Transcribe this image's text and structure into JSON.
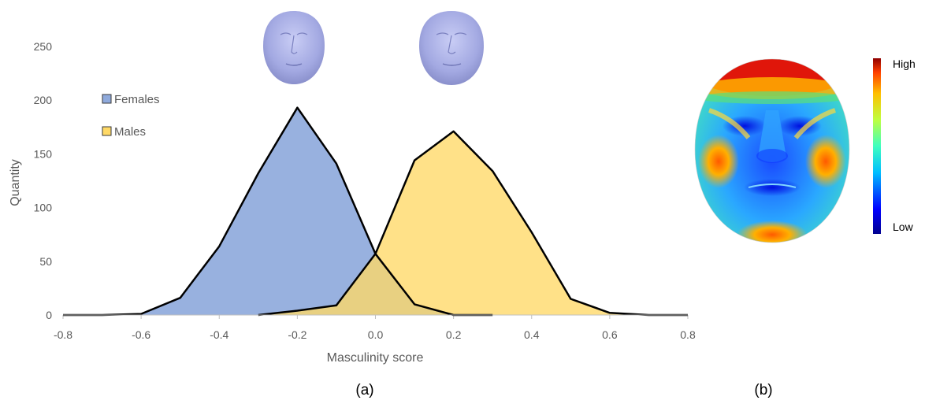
{
  "colors": {
    "females": "#8faadc",
    "males": "#ffd966",
    "overlap": "#c9b57a",
    "outline": "#000000",
    "axis": "#bfbfbf",
    "face_gray": "#aab0e8"
  },
  "chart_data": {
    "type": "area",
    "xlabel": "Masculinity score",
    "ylabel": "Quantity",
    "xlim": [
      -0.8,
      0.8
    ],
    "ylim": [
      0,
      250
    ],
    "xticks": [
      "-0.8",
      "-0.6",
      "-0.4",
      "-0.2",
      "0.0",
      "0.2",
      "0.4",
      "0.6",
      "0.8"
    ],
    "yticks": [
      "0",
      "50",
      "100",
      "150",
      "200",
      "250"
    ],
    "legend_position": "top-left",
    "series": [
      {
        "name": "Females",
        "color": "#8faadc",
        "x": [
          -0.8,
          -0.7,
          -0.6,
          -0.5,
          -0.4,
          -0.3,
          -0.2,
          -0.1,
          0.0,
          0.1,
          0.2,
          0.3
        ],
        "y": [
          0,
          0,
          1,
          16,
          64,
          132,
          193,
          141,
          57,
          10,
          0,
          0
        ]
      },
      {
        "name": "Males",
        "color": "#ffd966",
        "x": [
          -0.3,
          -0.2,
          -0.1,
          0.0,
          0.1,
          0.2,
          0.3,
          0.4,
          0.5,
          0.6,
          0.7,
          0.8
        ],
        "y": [
          0,
          4,
          9,
          57,
          144,
          171,
          134,
          77,
          15,
          2,
          0,
          0
        ]
      }
    ]
  },
  "panels": {
    "a_label": "(a)",
    "b_label": "(b)"
  },
  "heatmap": {
    "colorbar_high": "High",
    "colorbar_low": "Low",
    "colormap": [
      "#00008f",
      "#0000ff",
      "#00bfff",
      "#3fffbf",
      "#bfff3f",
      "#ffbf00",
      "#ff3f00",
      "#8f0000"
    ]
  }
}
